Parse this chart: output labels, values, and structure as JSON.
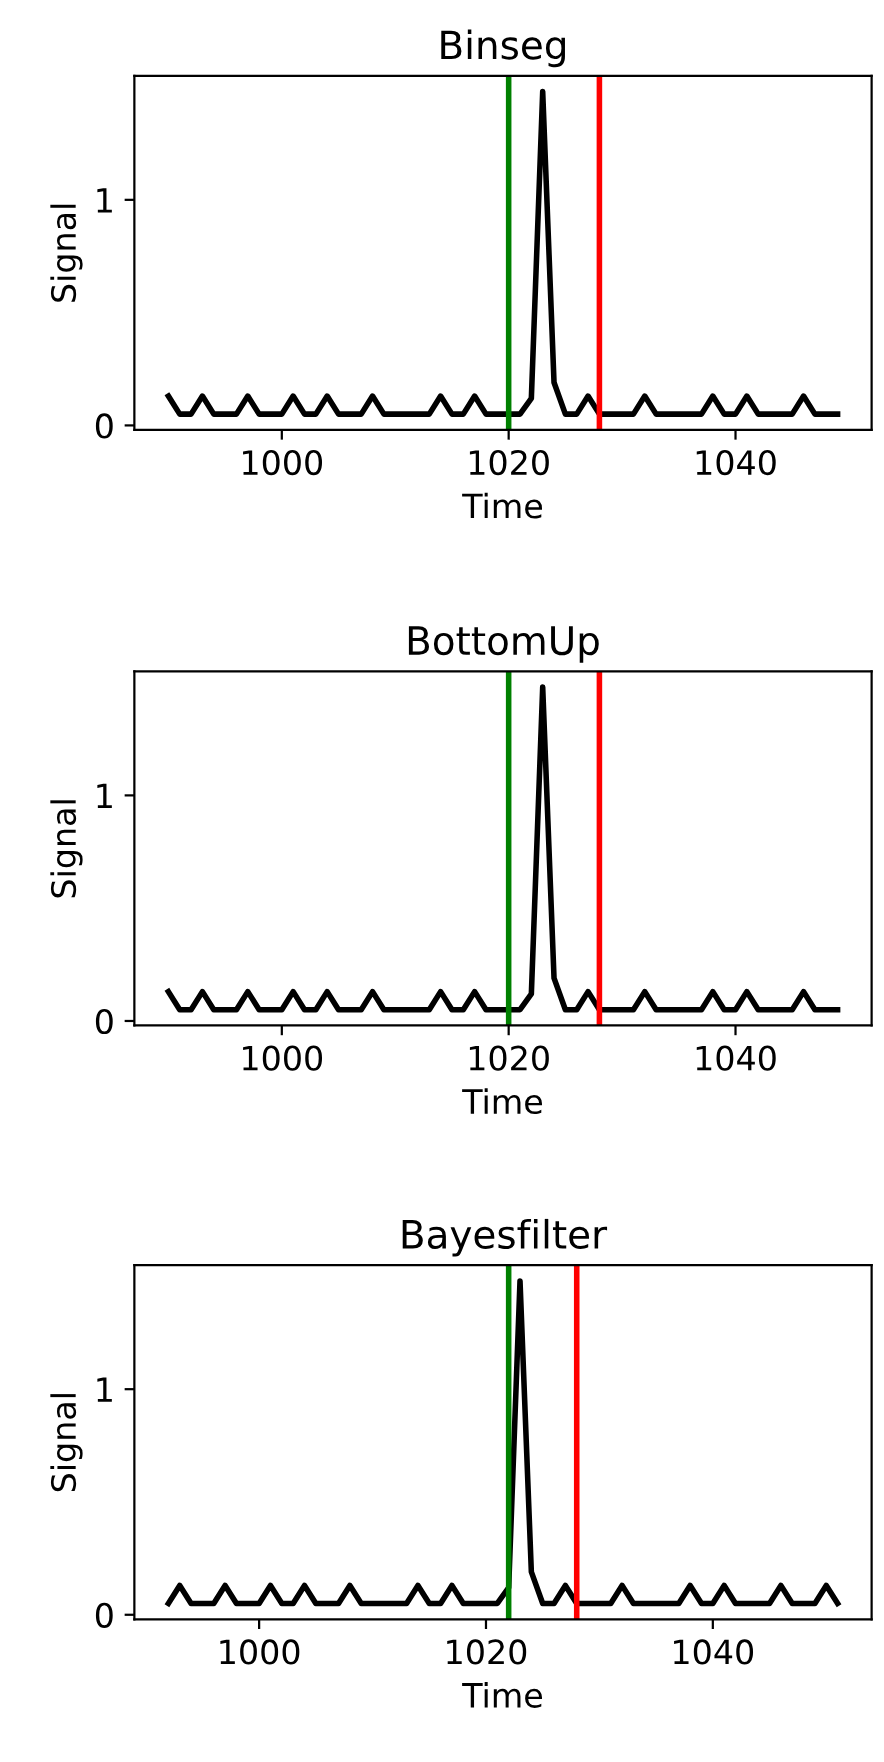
{
  "chart_data": [
    {
      "type": "line",
      "title": "Binseg",
      "xlabel": "Time",
      "ylabel": "Signal",
      "xlim": [
        987,
        1052
      ],
      "ylim": [
        -0.02,
        1.55
      ],
      "xticks": [
        1000,
        1020,
        1040
      ],
      "yticks": [
        0,
        1
      ],
      "grid": false,
      "legend": false,
      "series": [
        {
          "color": "#000000",
          "x": [
            990,
            991,
            992,
            993,
            994,
            995,
            996,
            997,
            998,
            999,
            1000,
            1001,
            1002,
            1003,
            1004,
            1005,
            1006,
            1007,
            1008,
            1009,
            1010,
            1011,
            1012,
            1013,
            1014,
            1015,
            1016,
            1017,
            1018,
            1019,
            1020,
            1021,
            1022,
            1023,
            1024,
            1025,
            1026,
            1027,
            1028,
            1029,
            1030,
            1031,
            1032,
            1033,
            1034,
            1035,
            1036,
            1037,
            1038,
            1039,
            1040,
            1041,
            1042,
            1043,
            1044,
            1045,
            1046,
            1047,
            1048,
            1049
          ],
          "values": [
            0.13,
            0.05,
            0.05,
            0.13,
            0.05,
            0.05,
            0.05,
            0.13,
            0.05,
            0.05,
            0.05,
            0.13,
            0.05,
            0.05,
            0.13,
            0.05,
            0.05,
            0.05,
            0.13,
            0.05,
            0.05,
            0.05,
            0.05,
            0.05,
            0.13,
            0.05,
            0.05,
            0.13,
            0.05,
            0.05,
            0.05,
            0.05,
            0.12,
            1.48,
            0.19,
            0.05,
            0.05,
            0.13,
            0.05,
            0.05,
            0.05,
            0.05,
            0.13,
            0.05,
            0.05,
            0.05,
            0.05,
            0.05,
            0.13,
            0.05,
            0.05,
            0.13,
            0.05,
            0.05,
            0.05,
            0.05,
            0.13,
            0.05,
            0.05,
            0.05
          ]
        }
      ],
      "ref_lines": [
        {
          "axis": "x",
          "value": 1020,
          "color": "#008000"
        },
        {
          "axis": "x",
          "value": 1028,
          "color": "#ff0000"
        }
      ]
    },
    {
      "type": "line",
      "title": "BottomUp",
      "xlabel": "Time",
      "ylabel": "Signal",
      "xlim": [
        987,
        1052
      ],
      "ylim": [
        -0.02,
        1.55
      ],
      "xticks": [
        1000,
        1020,
        1040
      ],
      "yticks": [
        0,
        1
      ],
      "grid": false,
      "legend": false,
      "series": [
        {
          "color": "#000000",
          "x": [
            990,
            991,
            992,
            993,
            994,
            995,
            996,
            997,
            998,
            999,
            1000,
            1001,
            1002,
            1003,
            1004,
            1005,
            1006,
            1007,
            1008,
            1009,
            1010,
            1011,
            1012,
            1013,
            1014,
            1015,
            1016,
            1017,
            1018,
            1019,
            1020,
            1021,
            1022,
            1023,
            1024,
            1025,
            1026,
            1027,
            1028,
            1029,
            1030,
            1031,
            1032,
            1033,
            1034,
            1035,
            1036,
            1037,
            1038,
            1039,
            1040,
            1041,
            1042,
            1043,
            1044,
            1045,
            1046,
            1047,
            1048,
            1049
          ],
          "values": [
            0.13,
            0.05,
            0.05,
            0.13,
            0.05,
            0.05,
            0.05,
            0.13,
            0.05,
            0.05,
            0.05,
            0.13,
            0.05,
            0.05,
            0.13,
            0.05,
            0.05,
            0.05,
            0.13,
            0.05,
            0.05,
            0.05,
            0.05,
            0.05,
            0.13,
            0.05,
            0.05,
            0.13,
            0.05,
            0.05,
            0.05,
            0.05,
            0.12,
            1.48,
            0.19,
            0.05,
            0.05,
            0.13,
            0.05,
            0.05,
            0.05,
            0.05,
            0.13,
            0.05,
            0.05,
            0.05,
            0.05,
            0.05,
            0.13,
            0.05,
            0.05,
            0.13,
            0.05,
            0.05,
            0.05,
            0.05,
            0.13,
            0.05,
            0.05,
            0.05
          ]
        }
      ],
      "ref_lines": [
        {
          "axis": "x",
          "value": 1020,
          "color": "#008000"
        },
        {
          "axis": "x",
          "value": 1028,
          "color": "#ff0000"
        }
      ]
    },
    {
      "type": "line",
      "title": "Bayesfilter",
      "xlabel": "Time",
      "ylabel": "Signal",
      "xlim": [
        989,
        1054
      ],
      "ylim": [
        -0.02,
        1.55
      ],
      "xticks": [
        1000,
        1020,
        1040
      ],
      "yticks": [
        0,
        1
      ],
      "grid": false,
      "legend": false,
      "series": [
        {
          "color": "#000000",
          "x": [
            992,
            993,
            994,
            995,
            996,
            997,
            998,
            999,
            1000,
            1001,
            1002,
            1003,
            1004,
            1005,
            1006,
            1007,
            1008,
            1009,
            1010,
            1011,
            1012,
            1013,
            1014,
            1015,
            1016,
            1017,
            1018,
            1019,
            1020,
            1021,
            1022,
            1023,
            1024,
            1025,
            1026,
            1027,
            1028,
            1029,
            1030,
            1031,
            1032,
            1033,
            1034,
            1035,
            1036,
            1037,
            1038,
            1039,
            1040,
            1041,
            1042,
            1043,
            1044,
            1045,
            1046,
            1047,
            1048,
            1049,
            1050,
            1051
          ],
          "values": [
            0.05,
            0.13,
            0.05,
            0.05,
            0.05,
            0.13,
            0.05,
            0.05,
            0.05,
            0.13,
            0.05,
            0.05,
            0.13,
            0.05,
            0.05,
            0.05,
            0.13,
            0.05,
            0.05,
            0.05,
            0.05,
            0.05,
            0.13,
            0.05,
            0.05,
            0.13,
            0.05,
            0.05,
            0.05,
            0.05,
            0.12,
            1.48,
            0.19,
            0.05,
            0.05,
            0.13,
            0.05,
            0.05,
            0.05,
            0.05,
            0.13,
            0.05,
            0.05,
            0.05,
            0.05,
            0.05,
            0.13,
            0.05,
            0.05,
            0.13,
            0.05,
            0.05,
            0.05,
            0.05,
            0.13,
            0.05,
            0.05,
            0.05,
            0.13,
            0.05
          ]
        }
      ],
      "ref_lines": [
        {
          "axis": "x",
          "value": 1022,
          "color": "#008000"
        },
        {
          "axis": "x",
          "value": 1028,
          "color": "#ff0000"
        }
      ]
    }
  ]
}
